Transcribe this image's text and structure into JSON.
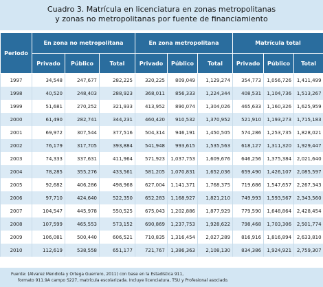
{
  "header": {
    "title_lines": [
      "Cuadro 3. Matrícula en licenciatura en zonas metropolitanas",
      "y zonas no metropolitanas por fuente de financiamiento"
    ]
  },
  "table": {
    "row_header": "Periodo",
    "groups": [
      "En zona no metropolitana",
      "En zona metropolitana",
      "Matrícula total"
    ],
    "subheaders": [
      "Privado",
      "Público",
      "Total"
    ],
    "rows": [
      [
        "1997",
        "34,548",
        "247,677",
        "282,225",
        "320,225",
        "809,049",
        "1,129,274",
        "354,773",
        "1,056,726",
        "1,411,499"
      ],
      [
        "1998",
        "40,520",
        "248,403",
        "288,923",
        "368,011",
        "856,333",
        "1,224,344",
        "408,531",
        "1,104,736",
        "1,513,267"
      ],
      [
        "1999",
        "51,681",
        "270,252",
        "321,933",
        "413,952",
        "890,074",
        "1,304,026",
        "465,633",
        "1,160,326",
        "1,625,959"
      ],
      [
        "2000",
        "61,490",
        "282,741",
        "344,231",
        "460,420",
        "910,532",
        "1,370,952",
        "521,910",
        "1,193,273",
        "1,715,183"
      ],
      [
        "2001",
        "69,972",
        "307,544",
        "377,516",
        "504,314",
        "946,191",
        "1,450,505",
        "574,286",
        "1,253,735",
        "1,828,021"
      ],
      [
        "2002",
        "76,179",
        "317,705",
        "393,884",
        "541,948",
        "993,615",
        "1,535,563",
        "618,127",
        "1,311,320",
        "1,929,447"
      ],
      [
        "2003",
        "74,333",
        "337,631",
        "411,964",
        "571,923",
        "1,037,753",
        "1,609,676",
        "646,256",
        "1,375,384",
        "2,021,640"
      ],
      [
        "2004",
        "78,285",
        "355,276",
        "433,561",
        "581,205",
        "1,070,831",
        "1,652,036",
        "659,490",
        "1,426,107",
        "2,085,597"
      ],
      [
        "2005",
        "92,682",
        "406,286",
        "498,968",
        "627,004",
        "1,141,371",
        "1,768,375",
        "719,686",
        "1,547,657",
        "2,267,343"
      ],
      [
        "2006",
        "97,710",
        "424,640",
        "522,350",
        "652,283",
        "1,168,927",
        "1,821,210",
        "749,993",
        "1,593,567",
        "2,343,560"
      ],
      [
        "2007",
        "104,547",
        "445,978",
        "550,525",
        "675,043",
        "1,202,886",
        "1,877,929",
        "779,590",
        "1,648,864",
        "2,428,454"
      ],
      [
        "2008",
        "107,599",
        "465,553",
        "573,152",
        "690,869",
        "1,237,753",
        "1,928,622",
        "798,468",
        "1,703,306",
        "2,501,774"
      ],
      [
        "2009",
        "106,081",
        "500,440",
        "606,521",
        "710,835",
        "1,316,454",
        "2,027,289",
        "816,916",
        "1,816,894",
        "2,633,810"
      ],
      [
        "2010",
        "112,619",
        "538,558",
        "651,177",
        "721,767",
        "1,386,363",
        "2,108,130",
        "834,386",
        "1,924,921",
        "2,759,307"
      ]
    ]
  },
  "footnote_lines": [
    "Fuente: (Alvarez Mendiola y Ortega Guerrero, 2011) con base en la Estadística 911,",
    "formato 911.9A campo S227, matrícula escolarizada. Incluye licenciatura, TSU y Profesional asociado."
  ]
}
